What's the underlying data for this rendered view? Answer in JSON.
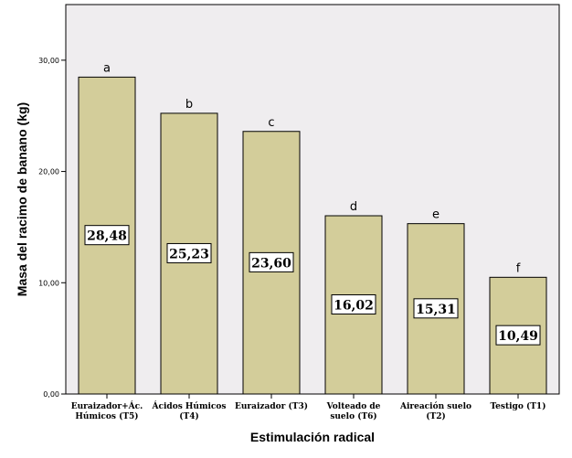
{
  "chart_data": {
    "type": "bar",
    "xlabel": "Estimulación radical",
    "ylabel": "Masa del racimo de banano (kg)",
    "ylim": [
      0,
      35
    ],
    "yticks": [
      "0,00",
      "10,00",
      "20,00",
      "30,00"
    ],
    "categories": [
      [
        "Euraizador+Ác.",
        "Húmicos (T5)"
      ],
      [
        "Ácidos Húmicos",
        "(T4)"
      ],
      [
        "Euraizador (T3)"
      ],
      [
        "Volteado de",
        "suelo (T6)"
      ],
      [
        "Aireación suelo",
        "(T2)"
      ],
      [
        "Testigo (T1)"
      ]
    ],
    "values": [
      28.48,
      25.23,
      23.6,
      16.02,
      15.31,
      10.49
    ],
    "value_labels": [
      "28,48",
      "25,23",
      "23,60",
      "16,02",
      "15,31",
      "10,49"
    ],
    "letters": [
      "a",
      "b",
      "c",
      "d",
      "e",
      "f"
    ],
    "grid": false,
    "bar_color": "#d3cd9a",
    "plot_background": "#efedef"
  }
}
